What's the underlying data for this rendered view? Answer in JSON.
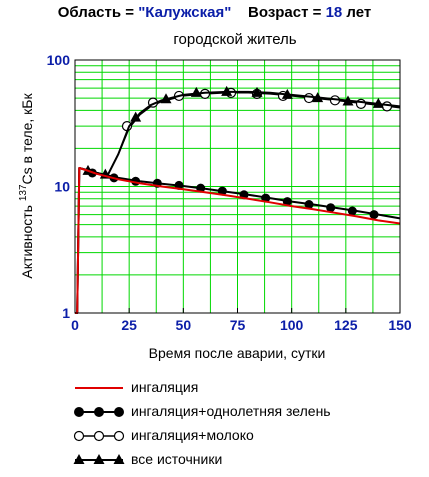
{
  "header": {
    "region_label": "Область = ",
    "region_value": "\"Калужская\"",
    "age_label": "Возраст = ",
    "age_value": "18",
    "age_unit": " лет",
    "subtitle": "городской житель"
  },
  "colors": {
    "accent": "#0b1ea8",
    "grid": "#00d800",
    "inhalation": "#e00000",
    "series": "#000000"
  },
  "chart_data": {
    "type": "line",
    "xlabel": "Время после аварии, сутки",
    "ylabel_sup": "137",
    "ylabel": "Cs в теле, кБк",
    "ylabel_prefix": "Активность ",
    "xlim": [
      0,
      150
    ],
    "ylim": [
      1,
      100
    ],
    "yscale": "log",
    "x_ticks": [
      "0",
      "25",
      "50",
      "75",
      "100",
      "125",
      "150"
    ],
    "y_ticks": [
      "1",
      "10",
      "100"
    ],
    "grid": true,
    "legend_position": "bottom",
    "series": [
      {
        "name": "ингаляция",
        "marker": "none",
        "x": [
          0,
          1,
          2,
          5,
          10,
          20,
          30,
          40,
          50,
          60,
          70,
          80,
          90,
          100,
          110,
          120,
          130,
          140,
          150
        ],
        "y": [
          1,
          1,
          14,
          13.5,
          12.6,
          11.4,
          10.6,
          10.0,
          9.5,
          9.0,
          8.5,
          8.0,
          7.5,
          7.0,
          6.6,
          6.2,
          5.8,
          5.4,
          5.1
        ]
      },
      {
        "name": "ингаляция+однолетняя зелень",
        "marker": "filled-circle",
        "x": [
          0,
          1,
          2,
          5,
          10,
          20,
          30,
          40,
          50,
          60,
          70,
          80,
          90,
          100,
          110,
          120,
          130,
          140,
          150
        ],
        "y": [
          1,
          1,
          14,
          13.6,
          12.8,
          11.7,
          11.0,
          10.5,
          10.1,
          9.6,
          9.1,
          8.6,
          8.1,
          7.6,
          7.2,
          6.8,
          6.4,
          6.0,
          5.6
        ],
        "marker_x": [
          8,
          18,
          28,
          38,
          48,
          58,
          68,
          78,
          88,
          98,
          108,
          118,
          128,
          138
        ],
        "marker_y": [
          12.8,
          11.7,
          11.0,
          10.6,
          10.2,
          9.7,
          9.2,
          8.6,
          8.1,
          7.6,
          7.2,
          6.8,
          6.4,
          6.0
        ]
      },
      {
        "name": "ингаляция+молоко",
        "marker": "open-circle",
        "x": [
          0,
          1,
          2,
          5,
          10,
          15,
          20,
          25,
          30,
          35,
          40,
          50,
          60,
          70,
          80,
          90,
          100,
          110,
          120,
          130,
          140,
          150
        ],
        "y": [
          1,
          1,
          14,
          13.5,
          12.8,
          12.2,
          18,
          29,
          37,
          43,
          47,
          52,
          54,
          55,
          55,
          54,
          52,
          50,
          48,
          46,
          44,
          42
        ],
        "marker_x": [
          24,
          36,
          48,
          60,
          72,
          84,
          96,
          108,
          120,
          132,
          144
        ],
        "marker_y": [
          30,
          46,
          52,
          54,
          55,
          54,
          52,
          50,
          48,
          45,
          43
        ]
      },
      {
        "name": "все источники",
        "marker": "filled-triangle",
        "x": [
          0,
          1,
          2,
          5,
          10,
          15,
          20,
          25,
          30,
          35,
          40,
          50,
          60,
          70,
          80,
          90,
          100,
          110,
          120,
          130,
          140,
          150
        ],
        "y": [
          1,
          1,
          14,
          13.5,
          12.8,
          12.2,
          18,
          30,
          38,
          44,
          48,
          53,
          55,
          56,
          56,
          55,
          53,
          51,
          49,
          47,
          45,
          43
        ],
        "marker_x": [
          6,
          14,
          28,
          42,
          56,
          70,
          84,
          98,
          112,
          126,
          140
        ],
        "marker_y": [
          13.3,
          12.4,
          35,
          49,
          55,
          56,
          55,
          53,
          50,
          47,
          45
        ]
      }
    ]
  }
}
